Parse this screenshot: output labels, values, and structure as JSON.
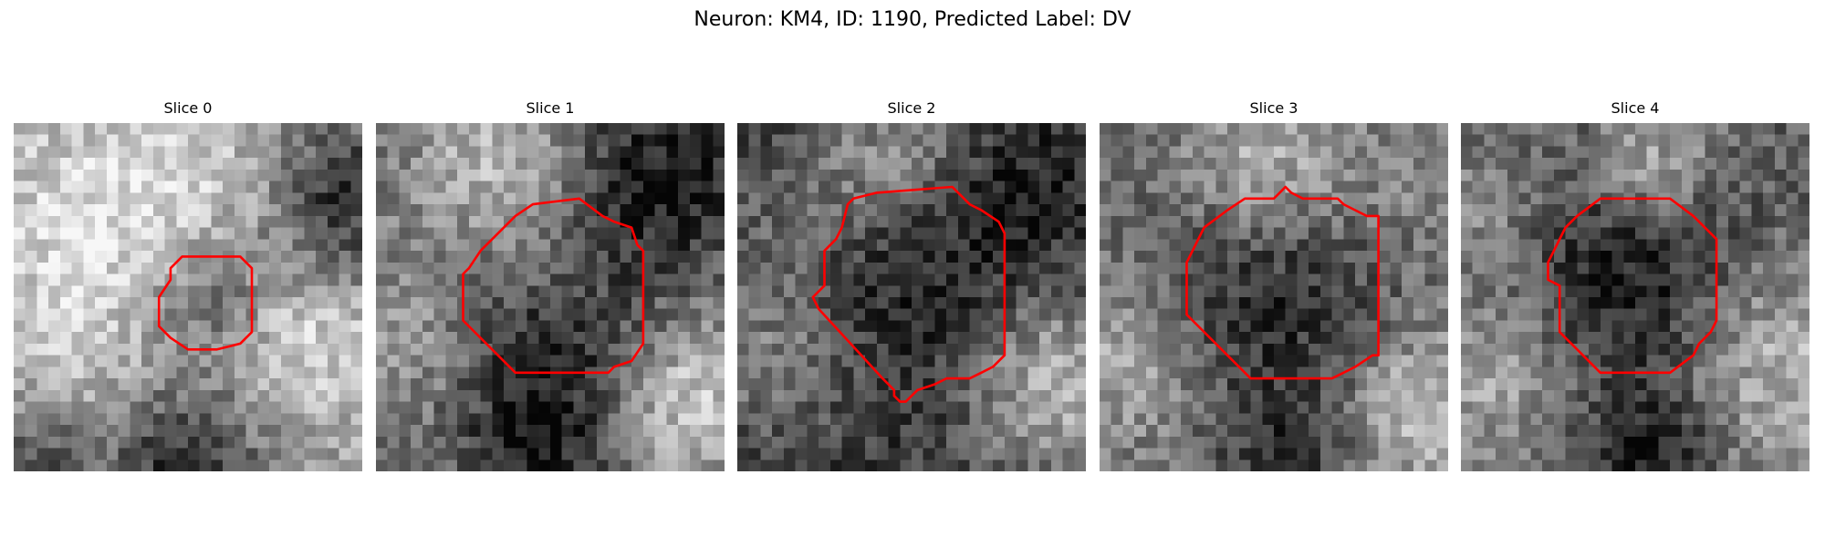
{
  "title": "Neuron: KM4, ID: 1190, Predicted Label: DV",
  "colors": {
    "contour": "#ff0000",
    "background": "#ffffff"
  },
  "slices": [
    {
      "label": "Slice 0",
      "grid": 30,
      "seed": 11,
      "base": 0.62,
      "blobs": [
        {
          "x": 5,
          "y": 8,
          "r": 7,
          "a": 0.22
        },
        {
          "x": 16,
          "y": 4,
          "r": 6,
          "a": 0.15
        },
        {
          "x": 24,
          "y": 18,
          "r": 5,
          "a": 0.25
        },
        {
          "x": 6,
          "y": 20,
          "r": 6,
          "a": 0.1
        },
        {
          "x": 17,
          "y": 15,
          "r": 4,
          "a": -0.3
        },
        {
          "x": 28,
          "y": 6,
          "r": 5,
          "a": -0.45
        },
        {
          "x": 14,
          "y": 29,
          "r": 5,
          "a": -0.45
        },
        {
          "x": 2,
          "y": 28,
          "r": 3,
          "a": -0.3
        }
      ],
      "contour": [
        [
          14.5,
          11.5
        ],
        [
          19.5,
          11.5
        ],
        [
          20.5,
          12.5
        ],
        [
          20.5,
          15
        ],
        [
          20.5,
          18
        ],
        [
          19.5,
          19
        ],
        [
          17.5,
          19.5
        ],
        [
          15,
          19.5
        ],
        [
          13.5,
          18.5
        ],
        [
          12.5,
          17.5
        ],
        [
          12.5,
          16
        ],
        [
          12.5,
          15
        ],
        [
          13.5,
          13.5
        ],
        [
          13.5,
          12.5
        ]
      ]
    },
    {
      "label": "Slice 1",
      "grid": 30,
      "seed": 23,
      "base": 0.45,
      "blobs": [
        {
          "x": 10,
          "y": 3,
          "r": 5,
          "a": 0.3
        },
        {
          "x": 24,
          "y": 4,
          "r": 6,
          "a": -0.35
        },
        {
          "x": 3,
          "y": 18,
          "r": 5,
          "a": 0.2
        },
        {
          "x": 26,
          "y": 23,
          "r": 5,
          "a": 0.4
        },
        {
          "x": 15,
          "y": 12,
          "r": 4,
          "a": 0.15
        },
        {
          "x": 15,
          "y": 19,
          "r": 7,
          "a": -0.35
        },
        {
          "x": 13,
          "y": 28,
          "r": 4,
          "a": -0.25
        }
      ],
      "contour": [
        [
          13.5,
          7
        ],
        [
          17.5,
          6.5
        ],
        [
          19.5,
          8
        ],
        [
          20.5,
          8.5
        ],
        [
          22,
          9
        ],
        [
          22.5,
          10.5
        ],
        [
          23,
          11
        ],
        [
          23,
          17
        ],
        [
          23,
          19
        ],
        [
          22,
          20.5
        ],
        [
          20.5,
          21
        ],
        [
          20,
          21.5
        ],
        [
          12,
          21.5
        ],
        [
          10.5,
          20
        ],
        [
          7.5,
          17
        ],
        [
          7.5,
          13
        ],
        [
          8,
          12.5
        ],
        [
          9,
          11
        ],
        [
          12,
          8
        ]
      ]
    },
    {
      "label": "Slice 2",
      "grid": 30,
      "seed": 37,
      "base": 0.22,
      "blobs": [
        {
          "x": 13,
          "y": 2,
          "r": 5,
          "a": 0.35
        },
        {
          "x": 3,
          "y": 19,
          "r": 6,
          "a": 0.3
        },
        {
          "x": 27,
          "y": 22,
          "r": 6,
          "a": 0.5
        },
        {
          "x": 4,
          "y": 6,
          "r": 4,
          "a": 0.15
        },
        {
          "x": 15,
          "y": 15,
          "r": 8,
          "a": -0.15
        },
        {
          "x": 24,
          "y": 5,
          "r": 5,
          "a": -0.1
        }
      ],
      "contour": [
        [
          12,
          6
        ],
        [
          18.5,
          5.5
        ],
        [
          20,
          7
        ],
        [
          21,
          7.5
        ],
        [
          22.5,
          8.5
        ],
        [
          23,
          9.5
        ],
        [
          23,
          20
        ],
        [
          22,
          21
        ],
        [
          21,
          21.5
        ],
        [
          20,
          22
        ],
        [
          18,
          22
        ],
        [
          17,
          22.5
        ],
        [
          15.5,
          23
        ],
        [
          15,
          23.5
        ],
        [
          14.5,
          24
        ],
        [
          14,
          24
        ],
        [
          13.5,
          23.5
        ],
        [
          13.5,
          23
        ],
        [
          12.5,
          22
        ],
        [
          7,
          16
        ],
        [
          6.5,
          15
        ],
        [
          7.5,
          14
        ],
        [
          7.5,
          11
        ],
        [
          8.5,
          10
        ],
        [
          9,
          9
        ],
        [
          9.5,
          7
        ],
        [
          10,
          6.5
        ]
      ]
    },
    {
      "label": "Slice 3",
      "grid": 30,
      "seed": 53,
      "base": 0.45,
      "blobs": [
        {
          "x": 14,
          "y": 3,
          "r": 5,
          "a": 0.3
        },
        {
          "x": 2,
          "y": 20,
          "r": 5,
          "a": 0.25
        },
        {
          "x": 27,
          "y": 24,
          "r": 5,
          "a": 0.35
        },
        {
          "x": 26,
          "y": 6,
          "r": 5,
          "a": 0.1
        },
        {
          "x": 15,
          "y": 15,
          "r": 8,
          "a": -0.3
        },
        {
          "x": 16,
          "y": 29,
          "r": 4,
          "a": -0.25
        }
      ],
      "contour": [
        [
          12.5,
          6.5
        ],
        [
          15,
          6.5
        ],
        [
          15.5,
          6
        ],
        [
          16,
          5.5
        ],
        [
          16.5,
          6
        ],
        [
          17.5,
          6.5
        ],
        [
          20.5,
          6.5
        ],
        [
          21,
          7
        ],
        [
          22,
          7.5
        ],
        [
          23,
          8
        ],
        [
          24,
          8
        ],
        [
          24,
          20
        ],
        [
          23.5,
          20
        ],
        [
          22,
          21
        ],
        [
          21,
          21.5
        ],
        [
          20,
          22
        ],
        [
          13,
          22
        ],
        [
          11,
          20
        ],
        [
          8,
          17
        ],
        [
          7.5,
          16.5
        ],
        [
          7.5,
          12
        ],
        [
          8,
          11
        ],
        [
          8.5,
          10
        ],
        [
          9,
          9
        ],
        [
          11,
          7.5
        ]
      ]
    },
    {
      "label": "Slice 4",
      "grid": 30,
      "seed": 71,
      "base": 0.38,
      "blobs": [
        {
          "x": 16,
          "y": 3,
          "r": 4,
          "a": 0.35
        },
        {
          "x": 3,
          "y": 21,
          "r": 6,
          "a": 0.3
        },
        {
          "x": 26,
          "y": 20,
          "r": 7,
          "a": 0.4
        },
        {
          "x": 2,
          "y": 6,
          "r": 4,
          "a": 0.2
        },
        {
          "x": 15,
          "y": 14,
          "r": 8,
          "a": -0.35
        },
        {
          "x": 16,
          "y": 28,
          "r": 4,
          "a": -0.3
        }
      ],
      "contour": [
        [
          12,
          6.5
        ],
        [
          18,
          6.5
        ],
        [
          20,
          8
        ],
        [
          22,
          10
        ],
        [
          22,
          17
        ],
        [
          21.5,
          18
        ],
        [
          20.5,
          19
        ],
        [
          20,
          20
        ],
        [
          18,
          21.5
        ],
        [
          12,
          21.5
        ],
        [
          9.5,
          19
        ],
        [
          8.5,
          18
        ],
        [
          8.5,
          14
        ],
        [
          7.5,
          13.5
        ],
        [
          7.5,
          12
        ],
        [
          8,
          11
        ],
        [
          8.5,
          10
        ],
        [
          9,
          9
        ],
        [
          10,
          8
        ]
      ]
    }
  ]
}
